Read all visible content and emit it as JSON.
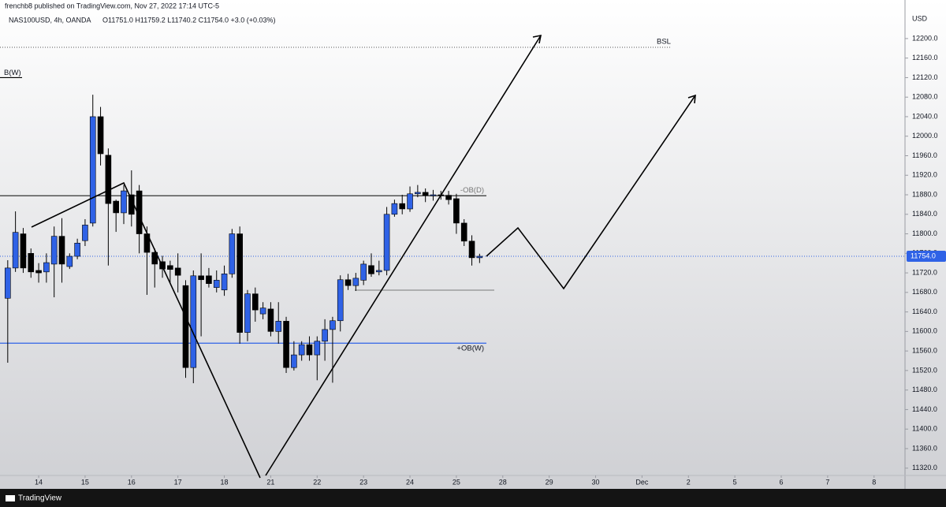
{
  "chart_data": {
    "type": "candlestick",
    "header": {
      "publisher": "frenchb8 published on TradingView.com, Nov 27, 2022 17:14 UTC-5",
      "symbol": "NAS100USD, 4h, OANDA",
      "ohlc": "O11751.0 H11759.2 L11740.2 C11754.0 +3.0 (+0.03%)",
      "currency": "USD",
      "brand": "TradingView"
    },
    "bull_color": "#2f62e6",
    "bear_color": "#000000",
    "xlim": [
      -1,
      116
    ],
    "ylim": [
      11305,
      12279
    ],
    "xticks": [
      {
        "value": 4,
        "label": "14"
      },
      {
        "value": 10,
        "label": "15"
      },
      {
        "value": 16,
        "label": "16"
      },
      {
        "value": 22,
        "label": "17"
      },
      {
        "value": 28,
        "label": "18"
      },
      {
        "value": 34,
        "label": "21"
      },
      {
        "value": 40,
        "label": "22"
      },
      {
        "value": 46,
        "label": "23"
      },
      {
        "value": 52,
        "label": "24"
      },
      {
        "value": 58,
        "label": "25"
      },
      {
        "value": 64,
        "label": "28"
      },
      {
        "value": 70,
        "label": "29"
      },
      {
        "value": 76,
        "label": "30"
      },
      {
        "value": 82,
        "label": "Dec"
      },
      {
        "value": 88,
        "label": "2"
      },
      {
        "value": 94,
        "label": "5"
      },
      {
        "value": 100,
        "label": "6"
      },
      {
        "value": 106,
        "label": "7"
      },
      {
        "value": 112,
        "label": "8"
      }
    ],
    "yticks": [
      {
        "value": 12200,
        "label": "12200.0"
      },
      {
        "value": 12160,
        "label": "12160.0"
      },
      {
        "value": 12120,
        "label": "12120.0"
      },
      {
        "value": 12080,
        "label": "12080.0"
      },
      {
        "value": 12040,
        "label": "12040.0"
      },
      {
        "value": 12000,
        "label": "12000.0"
      },
      {
        "value": 11960,
        "label": "11960.0"
      },
      {
        "value": 11920,
        "label": "11920.0"
      },
      {
        "value": 11880,
        "label": "11880.0"
      },
      {
        "value": 11840,
        "label": "11840.0"
      },
      {
        "value": 11800,
        "label": "11800.0"
      },
      {
        "value": 11760,
        "label": "11760.0"
      },
      {
        "value": 11720,
        "label": "11720.0"
      },
      {
        "value": 11680,
        "label": "11680.0"
      },
      {
        "value": 11640,
        "label": "11640.0"
      },
      {
        "value": 11600,
        "label": "11600.0"
      },
      {
        "value": 11560,
        "label": "11560.0"
      },
      {
        "value": 11520,
        "label": "11520.0"
      },
      {
        "value": 11480,
        "label": "11480.0"
      },
      {
        "value": 11440,
        "label": "11440.0"
      },
      {
        "value": 11400,
        "label": "11400.0"
      },
      {
        "value": 11360,
        "label": "11360.0"
      },
      {
        "value": 11320,
        "label": "11320.0"
      }
    ],
    "open": [
      11668,
      11730,
      11800,
      11760,
      11725,
      11722,
      11738,
      11795,
      11733,
      11754,
      11786,
      11822,
      12040,
      11961,
      11867,
      11843,
      11880,
      11888,
      11800,
      11762,
      11743,
      11735,
      11730,
      11694,
      11526,
      11714,
      11714,
      11690,
      11685,
      11718,
      11800,
      11598,
      11677,
      11636,
      11646,
      11600,
      11621,
      11526,
      11552,
      11573,
      11552,
      11580,
      11604,
      11622,
      11706,
      11694,
      11705,
      11735,
      11722,
      11725,
      11840,
      11862,
      11851,
      11882,
      11885,
      11878,
      11880,
      11879,
      11872,
      11822,
      11785,
      11751
    ],
    "high": [
      11746,
      11846,
      11812,
      11770,
      11740,
      11760,
      11815,
      11832,
      11760,
      11790,
      11830,
      12085,
      12060,
      11975,
      11870,
      11900,
      11930,
      11900,
      11815,
      11770,
      11755,
      11745,
      11760,
      11705,
      11725,
      11760,
      11730,
      11725,
      11735,
      11810,
      11815,
      11685,
      11690,
      11660,
      11660,
      11660,
      11630,
      11580,
      11580,
      11590,
      11590,
      11625,
      11630,
      11715,
      11718,
      11720,
      11745,
      11760,
      11745,
      11855,
      11870,
      11880,
      11897,
      11900,
      11893,
      11890,
      11888,
      11888,
      11882,
      11830,
      11797,
      11759.2
    ],
    "low": [
      11536,
      11722,
      11720,
      11710,
      11700,
      11700,
      11670,
      11700,
      11728,
      11748,
      11775,
      11815,
      11940,
      11735,
      11804,
      11820,
      11815,
      11760,
      11675,
      11690,
      11710,
      11700,
      11680,
      11505,
      11494,
      11590,
      11690,
      11680,
      11673,
      11710,
      11575,
      11580,
      11620,
      11625,
      11590,
      11575,
      11515,
      11520,
      11540,
      11540,
      11500,
      11540,
      11495,
      11600,
      11685,
      11683,
      11695,
      11712,
      11715,
      11715,
      11835,
      11840,
      11845,
      11875,
      11865,
      11868,
      11870,
      11860,
      11800,
      11775,
      11735,
      11740.2
    ],
    "close": [
      11730,
      11803,
      11730,
      11722,
      11720,
      11741,
      11795,
      11738,
      11754,
      11781,
      11818,
      12040,
      11964,
      11862,
      11843,
      11888,
      11840,
      11800,
      11762,
      11738,
      11728,
      11727,
      11715,
      11526,
      11714,
      11706,
      11698,
      11705,
      11718,
      11800,
      11598,
      11677,
      11644,
      11648,
      11600,
      11621,
      11526,
      11552,
      11573,
      11552,
      11580,
      11604,
      11622,
      11706,
      11694,
      11709,
      11738,
      11718,
      11725,
      11840,
      11862,
      11851,
      11882,
      11885,
      11879,
      11880,
      11879,
      11870,
      11822,
      11785,
      11751,
      11754
    ],
    "levels": [
      {
        "label": "BSL",
        "value": 12182,
        "color": "#555555",
        "style": "dotted"
      },
      {
        "label": "B(W)",
        "value": 12120,
        "color": "#000000",
        "style": "short"
      },
      {
        "label": "-OB(D)",
        "value": 11878,
        "color": "#333333",
        "style": "solid"
      },
      {
        "label": "+OB(W)",
        "value": 11576,
        "color": "#2f62e6",
        "style": "solid"
      }
    ],
    "price_label": {
      "value": 11754,
      "label": "11754.0",
      "color": "#2f62e6"
    }
  }
}
